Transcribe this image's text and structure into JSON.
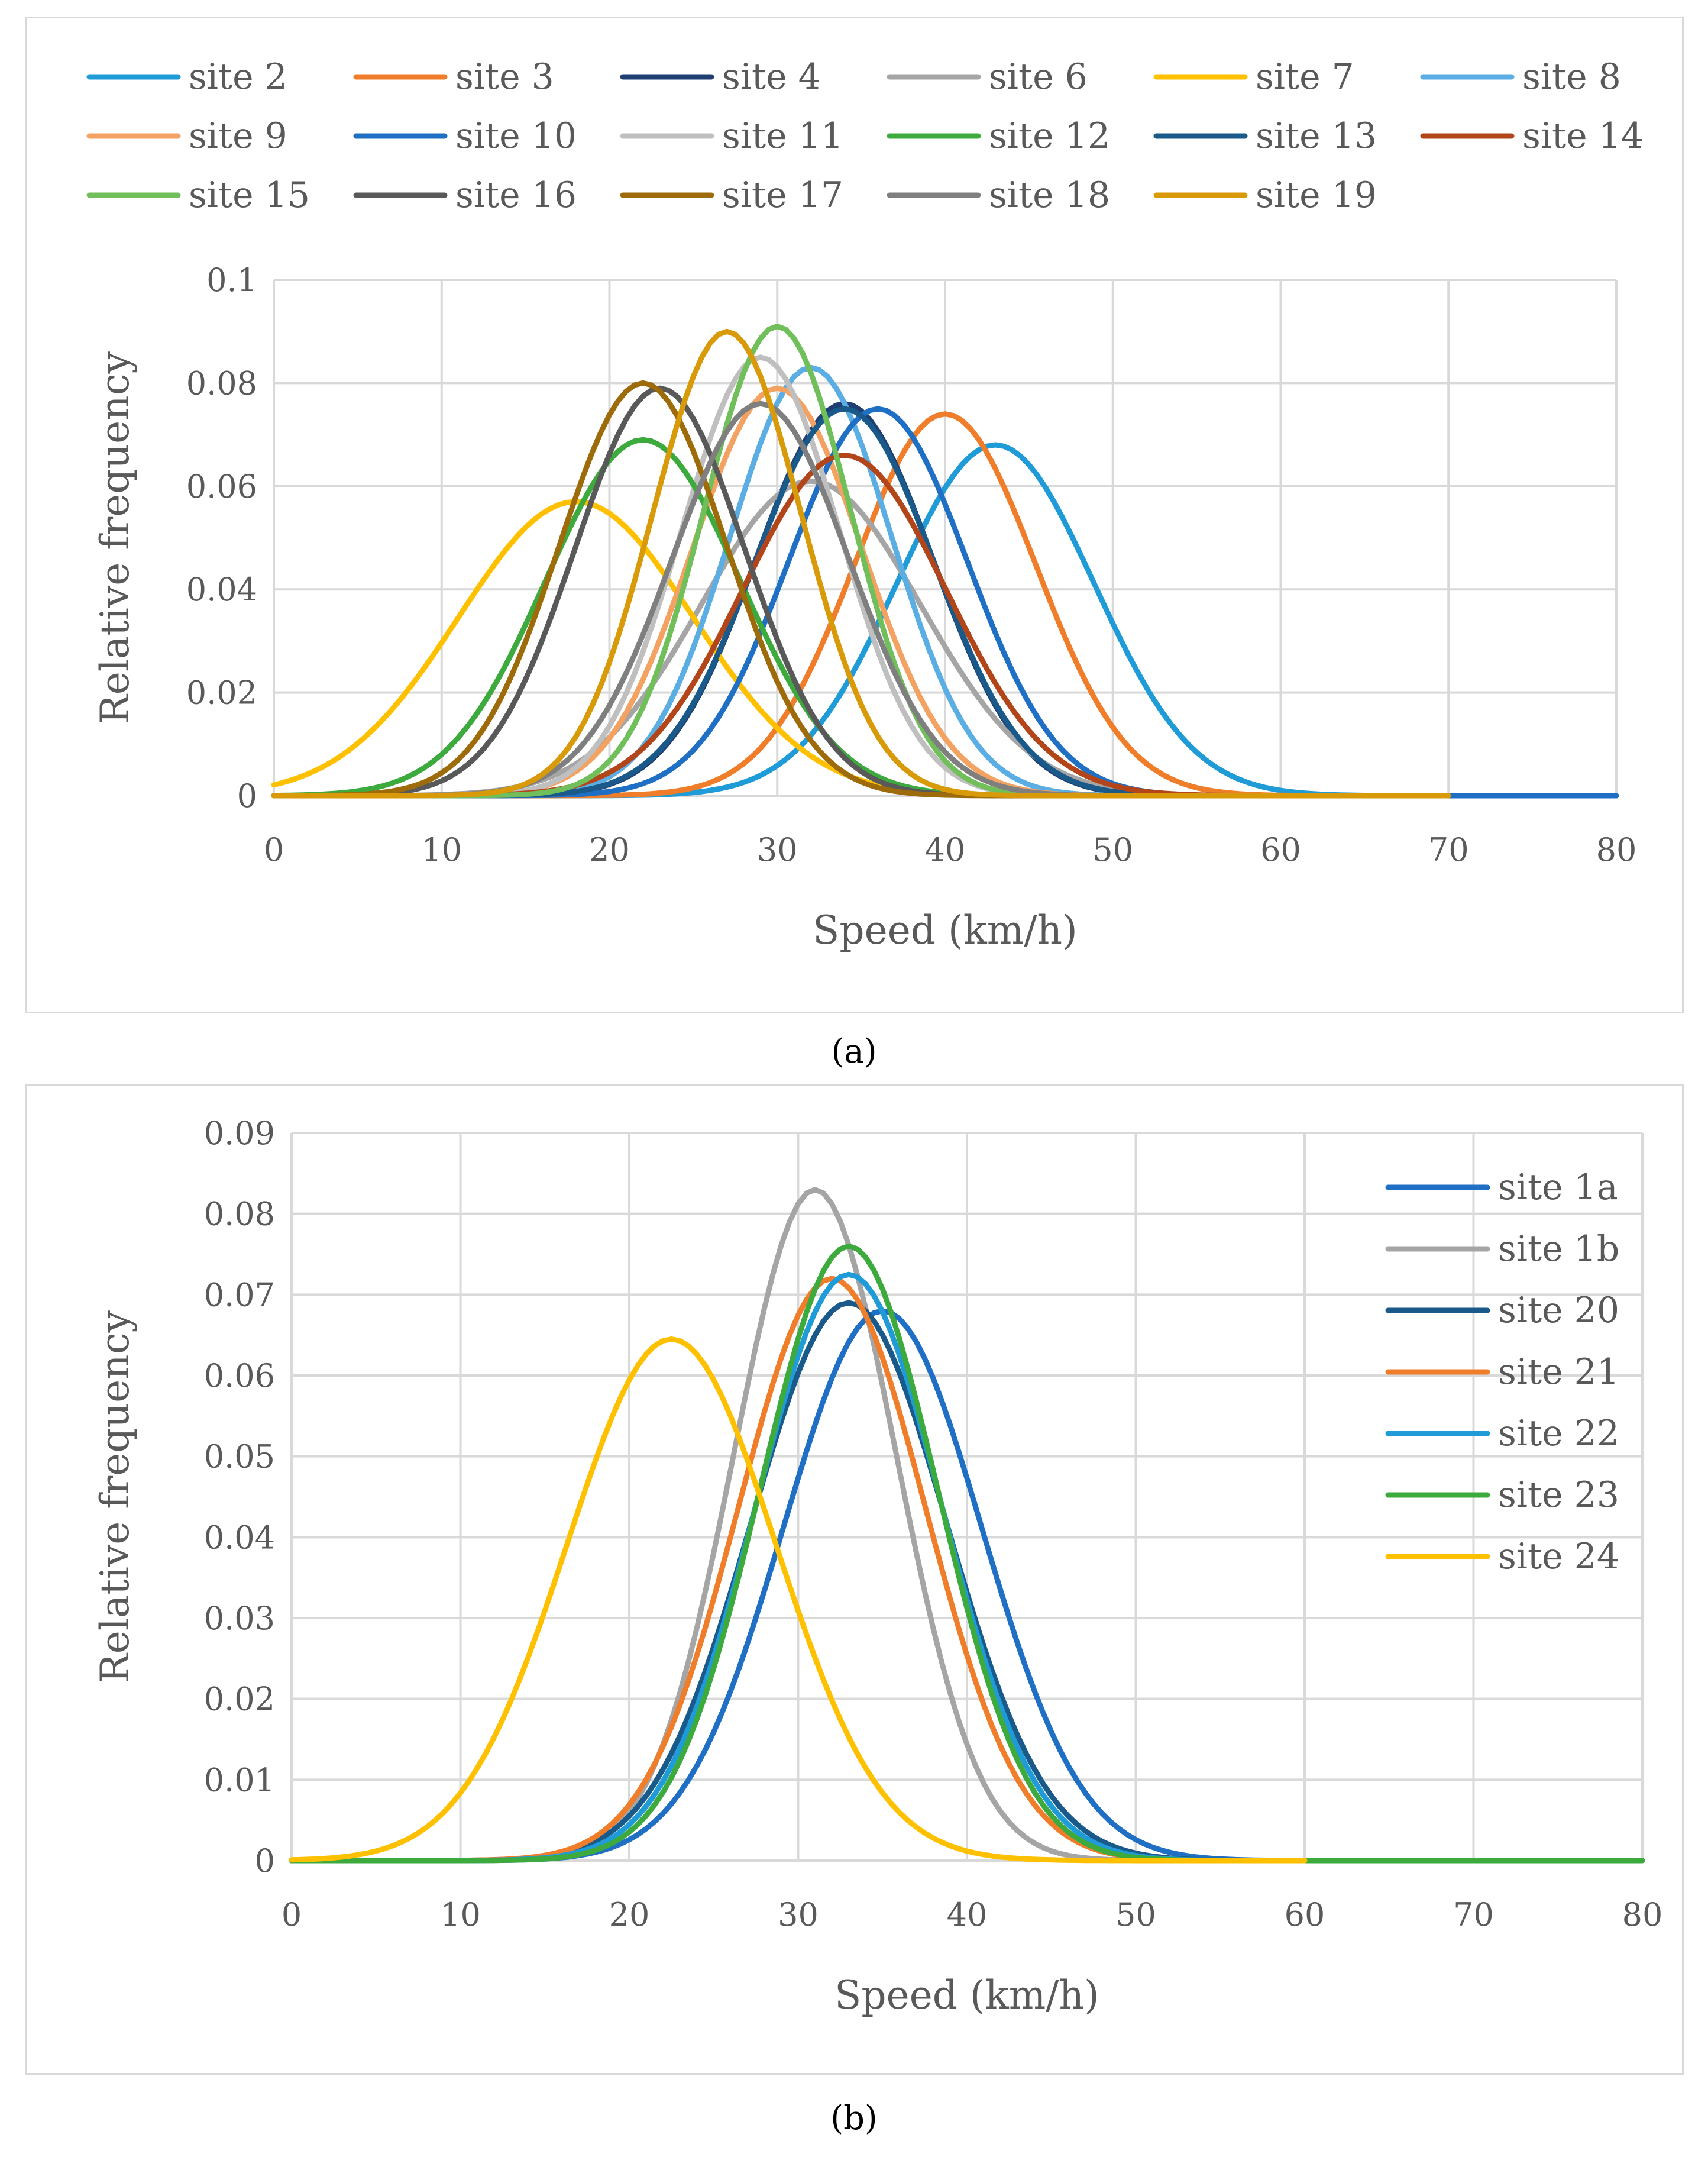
{
  "captions": {
    "a": "(a)",
    "b": "(b)"
  },
  "chart_data": [
    {
      "type": "line",
      "title": "",
      "xlabel": "Speed (km/h)",
      "ylabel": "Relative frequency",
      "xlim": [
        0,
        80
      ],
      "ylim": [
        0,
        0.1
      ],
      "xticks": [
        "0",
        "10",
        "20",
        "30",
        "40",
        "50",
        "60",
        "70",
        "80"
      ],
      "yticks": [
        "0",
        "0.02",
        "0.04",
        "0.06",
        "0.08",
        "0.1"
      ],
      "grid": true,
      "legend_position": "top",
      "series": [
        {
          "name": "site 2",
          "color": "#1F9BD7",
          "mu": 43,
          "peak": 0.068,
          "xmax": 80
        },
        {
          "name": "site 3",
          "color": "#F07D2A",
          "mu": 40,
          "peak": 0.074,
          "xmax": 80
        },
        {
          "name": "site 4",
          "color": "#1F3F73",
          "mu": 34,
          "peak": 0.076,
          "xmax": 80
        },
        {
          "name": "site 6",
          "color": "#A5A5A5",
          "mu": 32,
          "peak": 0.061,
          "xmax": 70
        },
        {
          "name": "site 7",
          "color": "#FFC000",
          "mu": 18,
          "peak": 0.057,
          "xmax": 70
        },
        {
          "name": "site 8",
          "color": "#5BAEE3",
          "mu": 32,
          "peak": 0.083,
          "xmax": 70
        },
        {
          "name": "site 9",
          "color": "#F4A261",
          "mu": 30,
          "peak": 0.079,
          "xmax": 70
        },
        {
          "name": "site 10",
          "color": "#1F6FC5",
          "mu": 36,
          "peak": 0.075,
          "xmax": 80
        },
        {
          "name": "site 11",
          "color": "#BFBFBF",
          "mu": 29,
          "peak": 0.085,
          "xmax": 70
        },
        {
          "name": "site 12",
          "color": "#3DAA3D",
          "mu": 22,
          "peak": 0.069,
          "xmax": 70
        },
        {
          "name": "site 13",
          "color": "#1A5A8A",
          "mu": 34,
          "peak": 0.075,
          "xmax": 70
        },
        {
          "name": "site 14",
          "color": "#B2461A",
          "mu": 34,
          "peak": 0.066,
          "xmax": 70
        },
        {
          "name": "site 15",
          "color": "#70BF5A",
          "mu": 30,
          "peak": 0.091,
          "xmax": 70
        },
        {
          "name": "site 16",
          "color": "#595959",
          "mu": 23,
          "peak": 0.079,
          "xmax": 70
        },
        {
          "name": "site 17",
          "color": "#9E6B0A",
          "mu": 22,
          "peak": 0.08,
          "xmax": 70
        },
        {
          "name": "site 18",
          "color": "#7F7F7F",
          "mu": 29,
          "peak": 0.076,
          "xmax": 70
        },
        {
          "name": "site 19",
          "color": "#D99A0A",
          "mu": 27,
          "peak": 0.09,
          "xmax": 70
        }
      ]
    },
    {
      "type": "line",
      "title": "",
      "xlabel": "Speed (km/h)",
      "ylabel": "Relative frequency",
      "xlim": [
        0,
        80
      ],
      "ylim": [
        0,
        0.09
      ],
      "xticks": [
        "0",
        "10",
        "20",
        "30",
        "40",
        "50",
        "60",
        "70",
        "80"
      ],
      "yticks": [
        "0",
        "0.01",
        "0.02",
        "0.03",
        "0.04",
        "0.05",
        "0.06",
        "0.07",
        "0.08",
        "0.09"
      ],
      "grid": true,
      "legend_position": "top-right",
      "series": [
        {
          "name": "site 1a",
          "color": "#1F6FC5",
          "mu": 35,
          "peak": 0.068,
          "xmax": 70
        },
        {
          "name": "site 1b",
          "color": "#A5A5A5",
          "mu": 31,
          "peak": 0.083,
          "xmax": 70
        },
        {
          "name": "site 20",
          "color": "#1A5A8A",
          "mu": 33,
          "peak": 0.069,
          "xmax": 70
        },
        {
          "name": "site 21",
          "color": "#F07D2A",
          "mu": 32,
          "peak": 0.072,
          "xmax": 70
        },
        {
          "name": "site 22",
          "color": "#1F9BD7",
          "mu": 33,
          "peak": 0.0725,
          "xmax": 70
        },
        {
          "name": "site 23",
          "color": "#3DAA3D",
          "mu": 33,
          "peak": 0.076,
          "xmax": 80
        },
        {
          "name": "site 24",
          "color": "#FFC000",
          "mu": 22.5,
          "peak": 0.0645,
          "xmax": 60
        }
      ]
    }
  ]
}
